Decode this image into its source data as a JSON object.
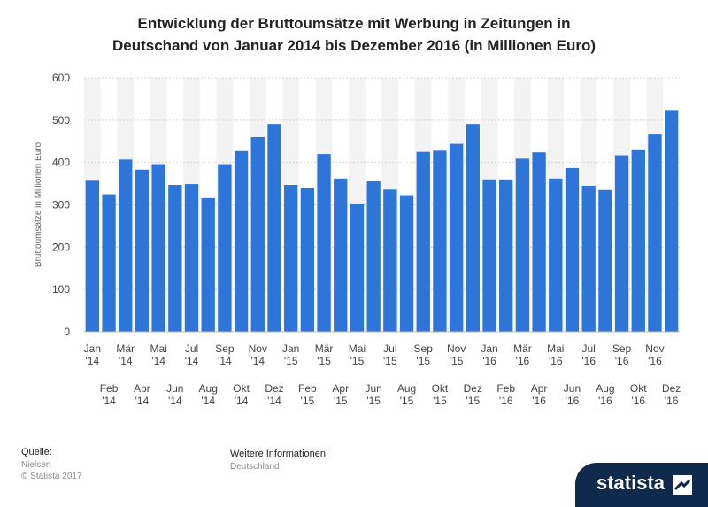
{
  "chart_data": {
    "type": "bar",
    "title_lines": [
      "Entwicklung der Bruttoumsätze mit Werbung in Zeitungen in",
      "Deutschand von Januar 2014 bis Dezember 2016 (in Millionen Euro)"
    ],
    "ylabel": "Bruttoumsätze in Millionen Euro",
    "xlabel": "",
    "ylim": [
      0,
      600
    ],
    "yticks": [
      0,
      100,
      200,
      300,
      400,
      500,
      600
    ],
    "grid": true,
    "bar_color": "#2e75d9",
    "categories": [
      [
        "Jan",
        "'14"
      ],
      [
        "Feb",
        "'14"
      ],
      [
        "Mär",
        "'14"
      ],
      [
        "Apr",
        "'14"
      ],
      [
        "Mai",
        "'14"
      ],
      [
        "Jun",
        "'14"
      ],
      [
        "Jul",
        "'14"
      ],
      [
        "Aug",
        "'14"
      ],
      [
        "Sep",
        "'14"
      ],
      [
        "Okt",
        "'14"
      ],
      [
        "Nov",
        "'14"
      ],
      [
        "Dez",
        "'14"
      ],
      [
        "Jan",
        "'15"
      ],
      [
        "Feb",
        "'15"
      ],
      [
        "Mär",
        "'15"
      ],
      [
        "Apr",
        "'15"
      ],
      [
        "Mai",
        "'15"
      ],
      [
        "Jun",
        "'15"
      ],
      [
        "Jul",
        "'15"
      ],
      [
        "Aug",
        "'15"
      ],
      [
        "Sep",
        "'15"
      ],
      [
        "Okt",
        "'15"
      ],
      [
        "Nov",
        "'15"
      ],
      [
        "Dez",
        "'15"
      ],
      [
        "Jan",
        "'16"
      ],
      [
        "Feb",
        "'16"
      ],
      [
        "Mär",
        "'16"
      ],
      [
        "Apr",
        "'16"
      ],
      [
        "Mai",
        "'16"
      ],
      [
        "Jun",
        "'16"
      ],
      [
        "Jul",
        "'16"
      ],
      [
        "Aug",
        "'16"
      ],
      [
        "Sep",
        "'16"
      ],
      [
        "Okt",
        "'16"
      ],
      [
        "Nov",
        "'16"
      ],
      [
        "Dez",
        "'16"
      ]
    ],
    "values": [
      359,
      325,
      407,
      383,
      396,
      347,
      349,
      316,
      396,
      427,
      460,
      491,
      347,
      339,
      420,
      362,
      303,
      356,
      336,
      323,
      425,
      428,
      444,
      491,
      360,
      360,
      409,
      424,
      362,
      387,
      345,
      335,
      417,
      431,
      466,
      524
    ]
  },
  "footer": {
    "source_label": "Quelle:",
    "source_value": "Nielsen",
    "copyright": "© Statista 2017",
    "info_label": "Weitere Informationen:",
    "info_value": "Deutschland"
  },
  "brand": {
    "name": "statista"
  }
}
